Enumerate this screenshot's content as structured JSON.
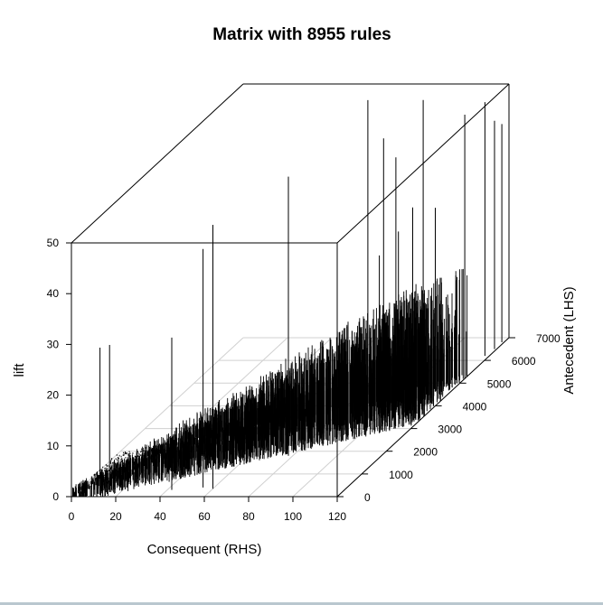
{
  "chart_data": {
    "type": "3d-lollipop-matrix",
    "title": "Matrix with 8955 rules",
    "x_axis": {
      "label": "Consequent (RHS)",
      "range": [
        0,
        120
      ],
      "ticks": [
        0,
        20,
        40,
        60,
        80,
        100,
        120
      ],
      "tick_labels": [
        "0",
        "20",
        "40",
        "60",
        "80",
        "100",
        "120"
      ]
    },
    "y_axis": {
      "label": "Antecedent (LHS)",
      "range": [
        0,
        7000
      ],
      "ticks": [
        0,
        1000,
        2000,
        3000,
        4000,
        5000,
        6000,
        7000
      ],
      "tick_labels": [
        "0",
        "1000",
        "2000",
        "3000",
        "4000",
        "5000",
        "6000",
        "7000"
      ]
    },
    "z_axis": {
      "label": "lift",
      "range": [
        0,
        50
      ],
      "ticks": [
        0,
        10,
        20,
        30,
        40,
        50
      ],
      "tick_labels": [
        "0",
        "10",
        "20",
        "30",
        "40",
        "50"
      ]
    },
    "grid": true,
    "rule_count": 8955,
    "tall_spikes": [
      {
        "rhs": 12,
        "lhs": 80,
        "lift": 29
      },
      {
        "rhs": 15,
        "lhs": 200,
        "lift": 29
      },
      {
        "rhs": 42,
        "lhs": 300,
        "lift": 30
      },
      {
        "rhs": 55,
        "lhs": 400,
        "lift": 47
      },
      {
        "rhs": 60,
        "lhs": 350,
        "lift": 52
      },
      {
        "rhs": 78,
        "lhs": 1800,
        "lift": 55
      },
      {
        "rhs": 80,
        "lhs": 5500,
        "lift": 46
      },
      {
        "rhs": 80,
        "lhs": 6000,
        "lift": 40
      },
      {
        "rhs": 84,
        "lhs": 4500,
        "lift": 58
      },
      {
        "rhs": 99,
        "lhs": 5400,
        "lift": 54
      },
      {
        "rhs": 108,
        "lhs": 2800,
        "lift": 35
      },
      {
        "rhs": 112,
        "lhs": 3800,
        "lift": 40
      },
      {
        "rhs": 118,
        "lhs": 6200,
        "lift": 50
      },
      {
        "rhs": 119,
        "lhs": 6500,
        "lift": 45
      },
      {
        "rhs": 120,
        "lhs": 5200,
        "lift": 52
      },
      {
        "rhs": 119,
        "lhs": 6800,
        "lift": 43
      },
      {
        "rhs": 100,
        "lhs": 4300,
        "lift": 33
      },
      {
        "rhs": 110,
        "lhs": 4900,
        "lift": 35
      }
    ]
  }
}
